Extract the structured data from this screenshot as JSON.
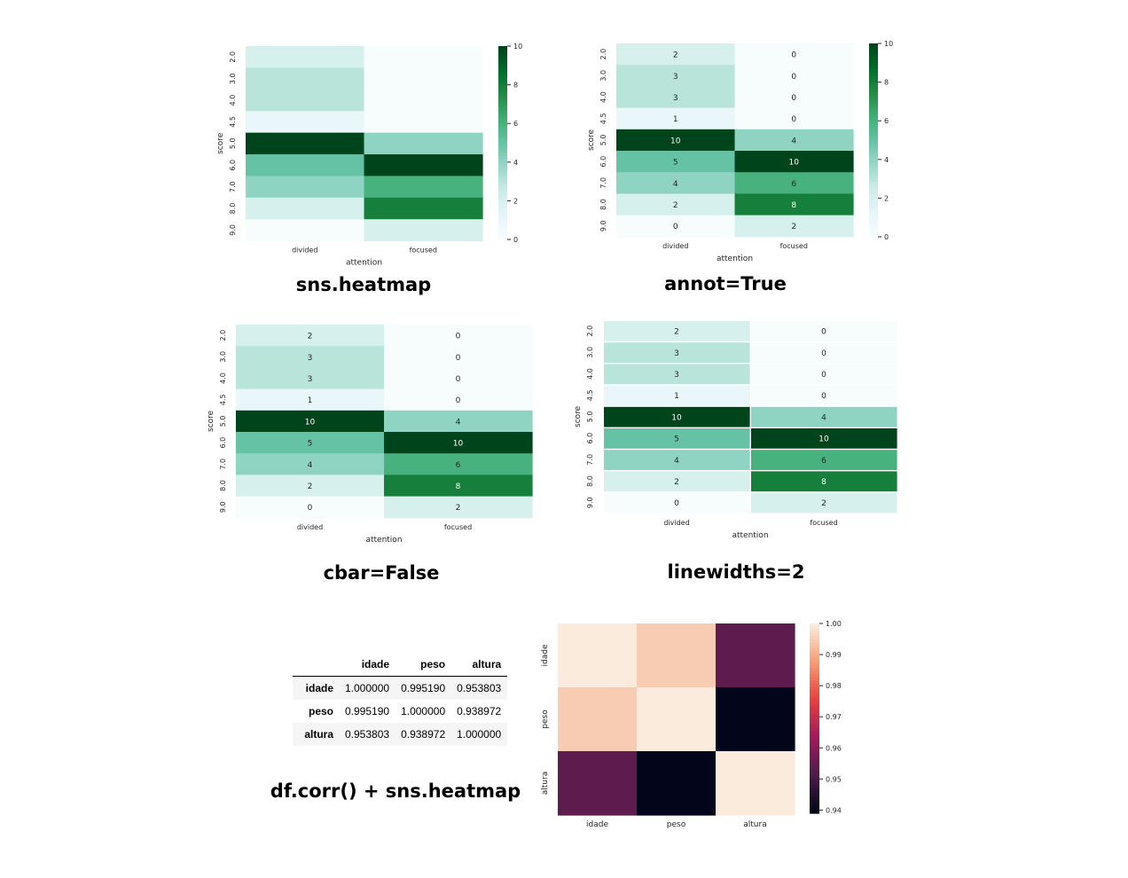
{
  "panels": {
    "p1": {
      "caption": "sns.heatmap"
    },
    "p2": {
      "caption": "annot=True"
    },
    "p3": {
      "caption": "cbar=False"
    },
    "p4": {
      "caption": "linewidths=2"
    },
    "p5": {
      "caption": "df.corr() + sns.heatmap"
    }
  },
  "colors": {
    "bugn_stops": [
      "#f7fcfd",
      "#e5f5f9",
      "#ccece6",
      "#99d8c9",
      "#66c2a4",
      "#41ae76",
      "#238b45",
      "#006d2c",
      "#00441b"
    ],
    "rocket_stops": [
      "#03051a",
      "#4c1d4b",
      "#a11a5b",
      "#e83f3f",
      "#f69c73",
      "#faebdd"
    ]
  },
  "chart_data": [
    {
      "type": "heatmap",
      "title": "sns.heatmap",
      "xlabel": "attention",
      "ylabel": "score",
      "x_categories": [
        "divided",
        "focused"
      ],
      "y_categories": [
        "2.0",
        "3.0",
        "4.0",
        "4.5",
        "5.0",
        "6.0",
        "7.0",
        "8.0",
        "9.0"
      ],
      "values": [
        [
          2,
          0
        ],
        [
          3,
          0
        ],
        [
          3,
          0
        ],
        [
          1,
          0
        ],
        [
          10,
          4
        ],
        [
          5,
          10
        ],
        [
          4,
          6
        ],
        [
          2,
          8
        ],
        [
          0,
          2
        ]
      ],
      "colormap": "BuGn",
      "vmin": 0,
      "vmax": 10,
      "colorbar": true,
      "colorbar_ticks": [
        "0",
        "2",
        "4",
        "6",
        "8",
        "10"
      ],
      "annot": false,
      "linewidths": 0
    },
    {
      "type": "heatmap",
      "title": "annot=True",
      "xlabel": "attention",
      "ylabel": "score",
      "x_categories": [
        "divided",
        "focused"
      ],
      "y_categories": [
        "2.0",
        "3.0",
        "4.0",
        "4.5",
        "5.0",
        "6.0",
        "7.0",
        "8.0",
        "9.0"
      ],
      "values": [
        [
          2,
          0
        ],
        [
          3,
          0
        ],
        [
          3,
          0
        ],
        [
          1,
          0
        ],
        [
          10,
          4
        ],
        [
          5,
          10
        ],
        [
          4,
          6
        ],
        [
          2,
          8
        ],
        [
          0,
          2
        ]
      ],
      "colormap": "BuGn",
      "vmin": 0,
      "vmax": 10,
      "colorbar": true,
      "colorbar_ticks": [
        "0",
        "2",
        "4",
        "6",
        "8",
        "10"
      ],
      "annot": true,
      "linewidths": 0
    },
    {
      "type": "heatmap",
      "title": "cbar=False",
      "xlabel": "attention",
      "ylabel": "score",
      "x_categories": [
        "divided",
        "focused"
      ],
      "y_categories": [
        "2.0",
        "3.0",
        "4.0",
        "4.5",
        "5.0",
        "6.0",
        "7.0",
        "8.0",
        "9.0"
      ],
      "values": [
        [
          2,
          0
        ],
        [
          3,
          0
        ],
        [
          3,
          0
        ],
        [
          1,
          0
        ],
        [
          10,
          4
        ],
        [
          5,
          10
        ],
        [
          4,
          6
        ],
        [
          2,
          8
        ],
        [
          0,
          2
        ]
      ],
      "colormap": "BuGn",
      "vmin": 0,
      "vmax": 10,
      "colorbar": false,
      "annot": true,
      "linewidths": 0
    },
    {
      "type": "heatmap",
      "title": "linewidths=2",
      "xlabel": "attention",
      "ylabel": "score",
      "x_categories": [
        "divided",
        "focused"
      ],
      "y_categories": [
        "2.0",
        "3.0",
        "4.0",
        "4.5",
        "5.0",
        "6.0",
        "7.0",
        "8.0",
        "9.0"
      ],
      "values": [
        [
          2,
          0
        ],
        [
          3,
          0
        ],
        [
          3,
          0
        ],
        [
          1,
          0
        ],
        [
          10,
          4
        ],
        [
          5,
          10
        ],
        [
          4,
          6
        ],
        [
          2,
          8
        ],
        [
          0,
          2
        ]
      ],
      "colormap": "BuGn",
      "vmin": 0,
      "vmax": 10,
      "colorbar": false,
      "annot": true,
      "linewidths": 2
    },
    {
      "type": "table",
      "title": "df.corr() + sns.heatmap",
      "columns": [
        "idade",
        "peso",
        "altura"
      ],
      "rows": [
        {
          "label": "idade",
          "values": [
            "1.000000",
            "0.995190",
            "0.953803"
          ]
        },
        {
          "label": "peso",
          "values": [
            "0.995190",
            "1.000000",
            "0.938972"
          ]
        },
        {
          "label": "altura",
          "values": [
            "0.953803",
            "0.938972",
            "1.000000"
          ]
        }
      ]
    },
    {
      "type": "heatmap",
      "title": "df.corr() + sns.heatmap",
      "xlabel": "",
      "ylabel": "",
      "x_categories": [
        "idade",
        "peso",
        "altura"
      ],
      "y_categories": [
        "idade",
        "peso",
        "altura"
      ],
      "values": [
        [
          1.0,
          0.99519,
          0.953803
        ],
        [
          0.99519,
          1.0,
          0.938972
        ],
        [
          0.953803,
          0.938972,
          1.0
        ]
      ],
      "colormap": "rocket",
      "vmin": 0.938972,
      "vmax": 1.0,
      "colorbar": true,
      "colorbar_ticks": [
        "0.94",
        "0.95",
        "0.96",
        "0.97",
        "0.98",
        "0.99",
        "1.00"
      ],
      "annot": false,
      "linewidths": 0
    }
  ]
}
